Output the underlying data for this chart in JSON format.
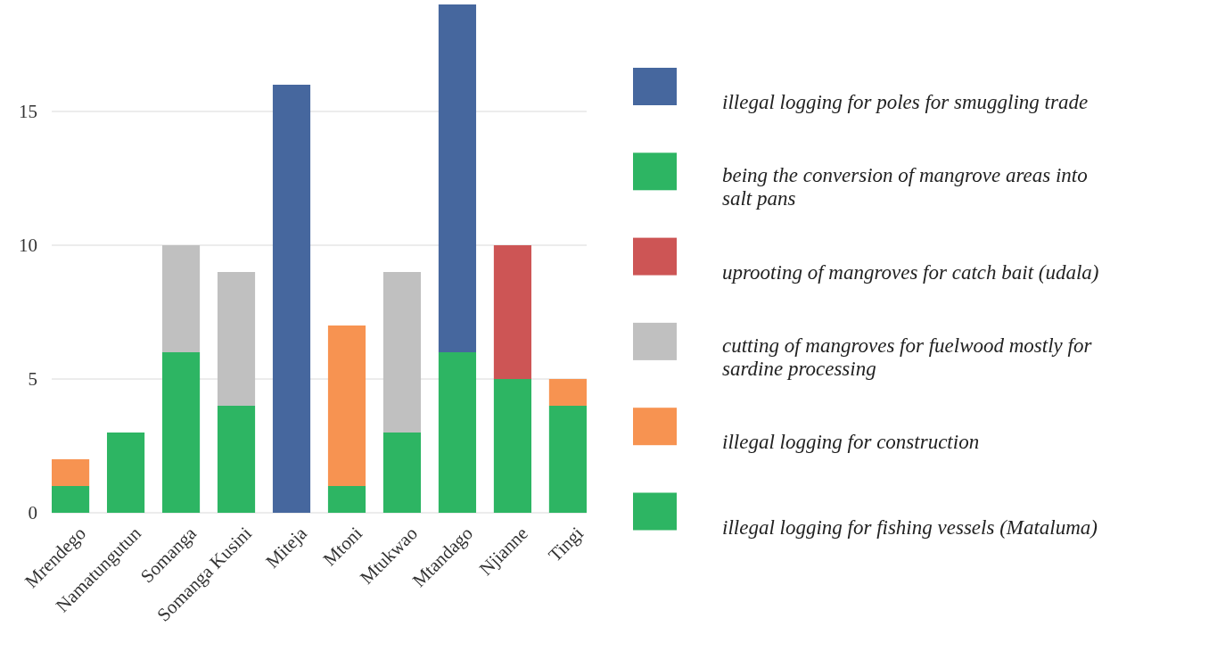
{
  "chart_data": {
    "type": "bar",
    "stacked": true,
    "categories": [
      "Mrendego",
      "Namatungutun",
      "Somanga",
      "Somanga Kusini",
      "Miteja",
      "Mtoni",
      "Mtukwao",
      "Mtandago",
      "Njianne",
      "Tingi"
    ],
    "series": [
      {
        "name": "illegal logging for fishing vessels (Mataluma)",
        "color": "#2db563",
        "values": [
          1,
          3,
          6,
          4,
          null,
          1,
          3,
          6,
          5,
          4
        ]
      },
      {
        "name": "illegal logging for construction",
        "color": "#f79351",
        "values": [
          1,
          null,
          null,
          null,
          null,
          6,
          null,
          null,
          null,
          1
        ]
      },
      {
        "name": "cutting of mangroves for fuelwood mostly for sardine processing",
        "color": "#c0c0c0",
        "values": [
          null,
          null,
          4,
          5,
          null,
          null,
          6,
          null,
          null,
          null
        ]
      },
      {
        "name": "uprooting of mangroves for catch bait (udala)",
        "color": "#cd5555",
        "values": [
          null,
          null,
          null,
          null,
          null,
          null,
          null,
          null,
          5,
          null
        ]
      },
      {
        "name": "being the conversion of mangrove areas into salt pans",
        "color": "#2db563",
        "values": [
          null,
          null,
          null,
          null,
          null,
          null,
          null,
          null,
          null,
          null
        ]
      },
      {
        "name": "illegal logging for poles for smuggling trade",
        "color": "#46679e",
        "values": [
          null,
          null,
          null,
          null,
          16,
          null,
          null,
          13,
          null,
          null
        ]
      }
    ],
    "ylim": [
      0,
      19
    ],
    "yticks": [
      0,
      5,
      10,
      15
    ],
    "grid": "y",
    "legend": "right"
  }
}
